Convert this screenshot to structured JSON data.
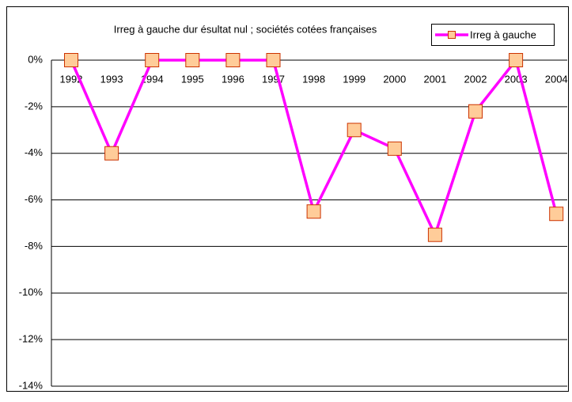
{
  "chart_data": {
    "type": "line",
    "title": "Irreg à gauche dur ésultat nul ; sociétés cotées françaises",
    "categories": [
      "1992",
      "1993",
      "1994",
      "1995",
      "1996",
      "1997",
      "1998",
      "1999",
      "2000",
      "2001",
      "2002",
      "2003",
      "2004"
    ],
    "series": [
      {
        "name": "Irreg à gauche",
        "color": "#ff00ff",
        "marker_fill": "#ffcc99",
        "marker_stroke": "#cc3300",
        "values": [
          0,
          -4.0,
          0,
          0,
          0,
          0,
          -6.5,
          -3.0,
          -3.8,
          -7.5,
          -2.2,
          0,
          -6.6
        ]
      }
    ],
    "ylim": [
      -14,
      0
    ],
    "yticks": [
      {
        "value": 0,
        "label": "0%"
      },
      {
        "value": -2,
        "label": "-2%"
      },
      {
        "value": -4,
        "label": "-4%"
      },
      {
        "value": -6,
        "label": "-6%"
      },
      {
        "value": -8,
        "label": "-8%"
      },
      {
        "value": -10,
        "label": "-10%"
      },
      {
        "value": -12,
        "label": "-12%"
      },
      {
        "value": -14,
        "label": "-14%"
      }
    ],
    "grid": true,
    "legend": "top-right"
  }
}
